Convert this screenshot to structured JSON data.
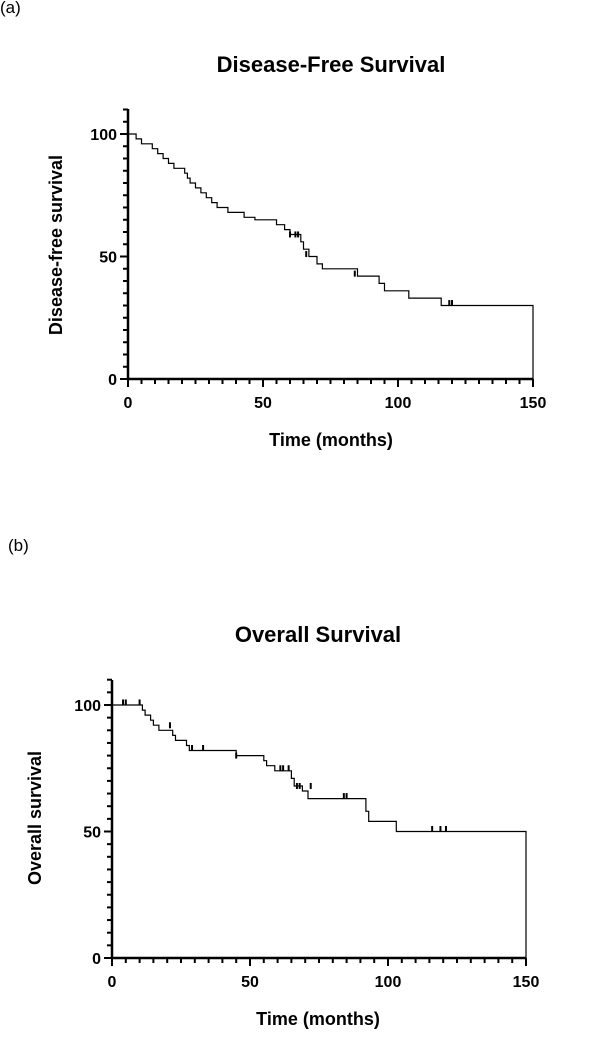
{
  "panels": [
    {
      "label": "(a)",
      "chart_data": {
        "type": "line",
        "title": "Disease-Free Survival",
        "xlabel": "Time (months)",
        "ylabel": "Disease-free survival",
        "xlim": [
          0,
          150
        ],
        "ylim": [
          0,
          100
        ],
        "xticks": [
          0,
          50,
          100,
          150
        ],
        "yticks": [
          0,
          50,
          100
        ],
        "grid": false,
        "series": [
          {
            "step": [
              [
                0,
                100
              ],
              [
                3,
                100
              ],
              [
                3,
                98
              ],
              [
                5,
                98
              ],
              [
                5,
                96
              ],
              [
                9,
                96
              ],
              [
                9,
                94
              ],
              [
                11,
                94
              ],
              [
                11,
                92
              ],
              [
                13,
                92
              ],
              [
                13,
                90
              ],
              [
                15,
                90
              ],
              [
                15,
                88
              ],
              [
                17,
                88
              ],
              [
                17,
                86
              ],
              [
                21,
                86
              ],
              [
                21,
                84
              ],
              [
                22,
                84
              ],
              [
                22,
                82
              ],
              [
                23,
                82
              ],
              [
                23,
                80
              ],
              [
                25,
                80
              ],
              [
                25,
                78
              ],
              [
                27,
                78
              ],
              [
                27,
                76
              ],
              [
                29,
                76
              ],
              [
                29,
                74
              ],
              [
                31,
                74
              ],
              [
                31,
                72
              ],
              [
                33,
                72
              ],
              [
                33,
                70
              ],
              [
                37,
                70
              ],
              [
                37,
                68
              ],
              [
                43,
                68
              ],
              [
                43,
                66
              ],
              [
                47,
                66
              ],
              [
                47,
                65
              ],
              [
                55,
                65
              ],
              [
                55,
                63
              ],
              [
                58,
                63
              ],
              [
                58,
                61
              ],
              [
                60,
                61
              ],
              [
                60,
                59
              ],
              [
                64,
                59
              ],
              [
                64,
                56
              ],
              [
                65,
                56
              ],
              [
                65,
                53
              ],
              [
                67,
                53
              ],
              [
                67,
                50
              ],
              [
                70,
                50
              ],
              [
                70,
                47
              ],
              [
                72,
                47
              ],
              [
                72,
                45
              ],
              [
                85,
                45
              ],
              [
                85,
                42
              ],
              [
                93,
                42
              ],
              [
                93,
                39
              ],
              [
                95,
                39
              ],
              [
                95,
                36
              ],
              [
                104,
                36
              ],
              [
                104,
                33
              ],
              [
                116,
                33
              ],
              [
                116,
                30
              ],
              [
                150,
                30
              ],
              [
                150,
                0
              ]
            ],
            "censored": [
              [
                60,
                59
              ],
              [
                62,
                59
              ],
              [
                63,
                59
              ],
              [
                66,
                51
              ],
              [
                84,
                43
              ],
              [
                119,
                31
              ],
              [
                120,
                31
              ]
            ]
          }
        ]
      }
    },
    {
      "label": "(b)",
      "chart_data": {
        "type": "line",
        "title": "Overall Survival",
        "xlabel": "Time (months)",
        "ylabel": "Overall survival",
        "xlim": [
          0,
          150
        ],
        "ylim": [
          0,
          100
        ],
        "xticks": [
          0,
          50,
          100,
          150
        ],
        "yticks": [
          0,
          50,
          100
        ],
        "grid": false,
        "series": [
          {
            "step": [
              [
                0,
                100
              ],
              [
                11,
                100
              ],
              [
                11,
                98
              ],
              [
                12,
                98
              ],
              [
                12,
                96
              ],
              [
                14,
                96
              ],
              [
                14,
                94
              ],
              [
                15,
                94
              ],
              [
                15,
                92
              ],
              [
                17,
                92
              ],
              [
                17,
                90
              ],
              [
                22,
                90
              ],
              [
                22,
                88
              ],
              [
                23,
                88
              ],
              [
                23,
                86
              ],
              [
                27,
                86
              ],
              [
                27,
                84
              ],
              [
                28,
                84
              ],
              [
                28,
                82
              ],
              [
                45,
                82
              ],
              [
                45,
                80
              ],
              [
                55,
                80
              ],
              [
                55,
                78
              ],
              [
                56,
                78
              ],
              [
                56,
                76
              ],
              [
                59,
                76
              ],
              [
                59,
                74
              ],
              [
                65,
                74
              ],
              [
                65,
                71
              ],
              [
                66,
                71
              ],
              [
                66,
                68
              ],
              [
                69,
                68
              ],
              [
                69,
                66
              ],
              [
                71,
                66
              ],
              [
                71,
                63
              ],
              [
                92,
                63
              ],
              [
                92,
                58
              ],
              [
                93,
                58
              ],
              [
                93,
                54
              ],
              [
                103,
                54
              ],
              [
                103,
                50
              ],
              [
                150,
                50
              ],
              [
                150,
                0
              ]
            ],
            "censored": [
              [
                4,
                101
              ],
              [
                5,
                101
              ],
              [
                10,
                101
              ],
              [
                21,
                92
              ],
              [
                29,
                83
              ],
              [
                33,
                83
              ],
              [
                45,
                80
              ],
              [
                61,
                75
              ],
              [
                62,
                75
              ],
              [
                64,
                75
              ],
              [
                67,
                68
              ],
              [
                68,
                68
              ],
              [
                72,
                68
              ],
              [
                84,
                64
              ],
              [
                85,
                64
              ],
              [
                116,
                51
              ],
              [
                119,
                51
              ],
              [
                121,
                51
              ]
            ]
          }
        ]
      }
    }
  ]
}
